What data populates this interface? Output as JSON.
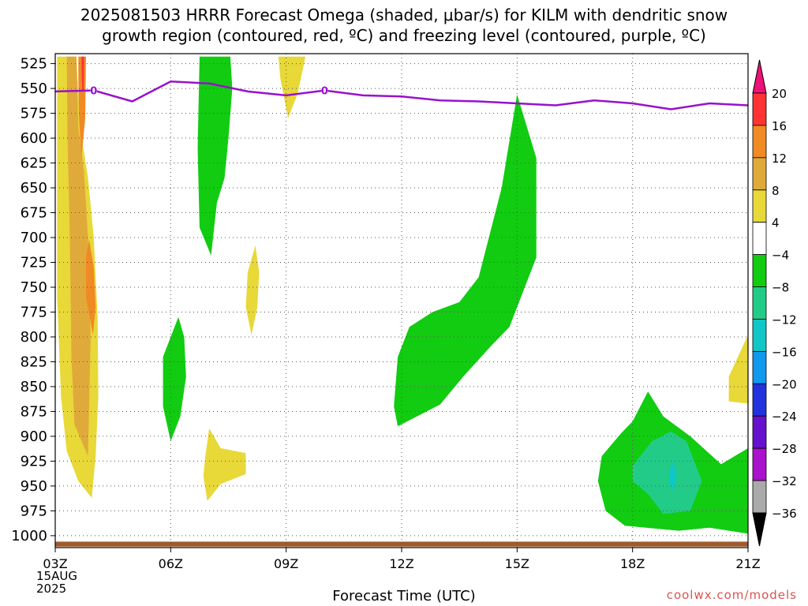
{
  "title": {
    "line1": "2025081503 HRRR Forecast Omega (shaded, μbar/s) for KILM with dendritic snow",
    "line2": "growth region (contoured, red, ºC) and freezing level (contoured, purple, ºC)"
  },
  "footer": {
    "xlabel": "Forecast Time (UTC)",
    "credit": "coolwx.com/models",
    "date_line1": "15AUG",
    "date_line2": "2025"
  },
  "chart_data": {
    "type": "heatmap",
    "title": "2025081503 HRRR Forecast Omega (shaded, μbar/s) for KILM with dendritic snow growth region (contoured, red, ºC) and freezing level (contoured, purple, ºC)",
    "xlabel": "Forecast Time (UTC)",
    "ylabel": "",
    "x_ticks": [
      {
        "hour": 0,
        "label": "03Z"
      },
      {
        "hour": 3,
        "label": "06Z"
      },
      {
        "hour": 6,
        "label": "09Z"
      },
      {
        "hour": 9,
        "label": "12Z"
      },
      {
        "hour": 12,
        "label": "15Z"
      },
      {
        "hour": 15,
        "label": "18Z"
      },
      {
        "hour": 18,
        "label": "21Z"
      }
    ],
    "x_range_hours": [
      0,
      18
    ],
    "y_ticks": [
      525,
      550,
      575,
      600,
      625,
      650,
      675,
      700,
      725,
      750,
      775,
      800,
      825,
      850,
      875,
      900,
      925,
      950,
      975,
      1000
    ],
    "y_range_mb": [
      515,
      1012
    ],
    "grid": true,
    "colorbar": {
      "labels": [
        "20",
        "16",
        "12",
        "8",
        "4",
        "−4",
        "−8",
        "−12",
        "−16",
        "−20",
        "−24",
        "−28",
        "−32",
        "−36"
      ],
      "bins": [
        {
          "range": [
            16,
            20
          ],
          "color": "#ff3333"
        },
        {
          "range": [
            12,
            16
          ],
          "color": "#f08a24"
        },
        {
          "range": [
            8,
            12
          ],
          "color": "#e0aa3a"
        },
        {
          "range": [
            4,
            8
          ],
          "color": "#e8d838"
        },
        {
          "range": [
            -4,
            4
          ],
          "color": "#ffffff"
        },
        {
          "range": [
            -8,
            -4
          ],
          "color": "#11cc11"
        },
        {
          "range": [
            -12,
            -8
          ],
          "color": "#22cc88"
        },
        {
          "range": [
            -16,
            -12
          ],
          "color": "#11c6c6"
        },
        {
          "range": [
            -20,
            -16
          ],
          "color": "#1199ee"
        },
        {
          "range": [
            -24,
            -20
          ],
          "color": "#2233dd"
        },
        {
          "range": [
            -28,
            -24
          ],
          "color": "#6611cc"
        },
        {
          "range": [
            -32,
            -28
          ],
          "color": "#aa11cc"
        },
        {
          "range": [
            -36,
            -32
          ],
          "color": "#aaaaaa"
        }
      ],
      "over_color": "#ee1177",
      "under_color": "#000000"
    },
    "shaded_regions": [
      {
        "value_bin": "4 to 8",
        "color": "#e8d838",
        "points": [
          [
            0.05,
            518
          ],
          [
            0.55,
            518
          ],
          [
            0.65,
            590
          ],
          [
            0.85,
            640
          ],
          [
            1.0,
            700
          ],
          [
            1.1,
            780
          ],
          [
            1.12,
            860
          ],
          [
            1.05,
            920
          ],
          [
            0.95,
            962
          ],
          [
            0.6,
            945
          ],
          [
            0.3,
            915
          ],
          [
            0.15,
            860
          ],
          [
            0.05,
            760
          ]
        ]
      },
      {
        "value_bin": "8 to 12",
        "color": "#e0aa3a",
        "points": [
          [
            0.3,
            518
          ],
          [
            0.55,
            518
          ],
          [
            0.6,
            590
          ],
          [
            0.75,
            635
          ],
          [
            0.85,
            700
          ],
          [
            0.92,
            800
          ],
          [
            0.85,
            920
          ],
          [
            0.5,
            888
          ],
          [
            0.42,
            820
          ],
          [
            0.38,
            700
          ],
          [
            0.32,
            600
          ]
        ]
      },
      {
        "value_bin": "12 to 16",
        "color": "#f08a24",
        "points": [
          [
            0.6,
            518
          ],
          [
            0.8,
            518
          ],
          [
            0.78,
            580
          ],
          [
            0.68,
            620
          ],
          [
            0.62,
            580
          ],
          [
            0.6,
            540
          ]
        ]
      },
      {
        "value_bin": "12 to 16",
        "color": "#f08a24",
        "points": [
          [
            0.8,
            720
          ],
          [
            0.88,
            702
          ],
          [
            1.0,
            730
          ],
          [
            1.05,
            770
          ],
          [
            0.98,
            798
          ],
          [
            0.8,
            760
          ]
        ]
      },
      {
        "value_bin": "16 to 20",
        "color": "#ff3333",
        "points": [
          [
            0.68,
            518
          ],
          [
            0.75,
            518
          ],
          [
            0.74,
            552
          ],
          [
            0.7,
            552
          ]
        ]
      },
      {
        "value_bin": "4 to 8",
        "color": "#e8d838",
        "points": [
          [
            5.8,
            518
          ],
          [
            6.5,
            518
          ],
          [
            6.3,
            555
          ],
          [
            6.05,
            580
          ],
          [
            5.85,
            540
          ]
        ]
      },
      {
        "value_bin": "4 to 8",
        "color": "#e8d838",
        "points": [
          [
            5.0,
            735
          ],
          [
            5.2,
            708
          ],
          [
            5.3,
            735
          ],
          [
            5.25,
            770
          ],
          [
            5.1,
            798
          ],
          [
            4.95,
            770
          ]
        ]
      },
      {
        "value_bin": "4 to 8",
        "color": "#e8d838",
        "points": [
          [
            3.9,
            920
          ],
          [
            4.0,
            892
          ],
          [
            4.3,
            912
          ],
          [
            4.95,
            917
          ],
          [
            4.95,
            938
          ],
          [
            4.3,
            948
          ],
          [
            3.95,
            965
          ],
          [
            3.85,
            940
          ]
        ]
      },
      {
        "value_bin": "4 to 8",
        "color": "#e8d838",
        "points": [
          [
            17.5,
            840
          ],
          [
            18.0,
            798
          ],
          [
            18.0,
            867
          ],
          [
            17.5,
            865
          ]
        ]
      },
      {
        "value_bin": "-4 to -8",
        "color": "#11cc11",
        "points": [
          [
            3.75,
            518
          ],
          [
            4.55,
            518
          ],
          [
            4.6,
            550
          ],
          [
            4.5,
            600
          ],
          [
            4.4,
            640
          ],
          [
            4.2,
            665
          ],
          [
            4.05,
            718
          ],
          [
            3.75,
            690
          ],
          [
            3.7,
            610
          ]
        ]
      },
      {
        "value_bin": "-4 to -8",
        "color": "#11cc11",
        "points": [
          [
            3.2,
            780
          ],
          [
            3.35,
            800
          ],
          [
            3.4,
            840
          ],
          [
            3.25,
            880
          ],
          [
            3.0,
            905
          ],
          [
            2.8,
            870
          ],
          [
            2.8,
            820
          ]
        ]
      },
      {
        "value_bin": "-4 to -8",
        "color": "#11cc11",
        "points": [
          [
            9.8,
            775
          ],
          [
            10.5,
            765
          ],
          [
            11.0,
            740
          ],
          [
            11.6,
            650
          ],
          [
            12.0,
            556
          ],
          [
            12.5,
            620
          ],
          [
            12.5,
            720
          ],
          [
            11.8,
            790
          ],
          [
            11.3,
            810
          ],
          [
            10.6,
            840
          ],
          [
            10.0,
            868
          ],
          [
            8.9,
            890
          ],
          [
            8.8,
            870
          ],
          [
            8.9,
            820
          ],
          [
            9.2,
            790
          ]
        ]
      },
      {
        "value_bin": "-4 to -8",
        "color": "#11cc11",
        "points": [
          [
            14.2,
            920
          ],
          [
            14.7,
            897
          ],
          [
            15.0,
            885
          ],
          [
            15.4,
            855
          ],
          [
            15.8,
            880
          ],
          [
            16.5,
            900
          ],
          [
            17.3,
            928
          ],
          [
            18.0,
            912
          ],
          [
            18.0,
            998
          ],
          [
            17.0,
            992
          ],
          [
            16.2,
            995
          ],
          [
            14.8,
            990
          ],
          [
            14.3,
            975
          ],
          [
            14.1,
            945
          ]
        ]
      },
      {
        "value_bin": "-8 to -12",
        "color": "#22cc88",
        "points": [
          [
            15.0,
            930
          ],
          [
            15.5,
            905
          ],
          [
            16.0,
            895
          ],
          [
            16.4,
            905
          ],
          [
            16.8,
            945
          ],
          [
            16.5,
            975
          ],
          [
            15.8,
            978
          ],
          [
            15.4,
            958
          ],
          [
            15.0,
            945
          ]
        ]
      },
      {
        "value_bin": "-12 to -16",
        "color": "#11c6c6",
        "points": [
          [
            15.95,
            935
          ],
          [
            16.05,
            925
          ],
          [
            16.15,
            940
          ],
          [
            16.05,
            955
          ],
          [
            15.95,
            948
          ]
        ]
      }
    ],
    "freezing_level": {
      "label": "0",
      "color": "#9911cc",
      "x_hours": [
        0,
        1,
        2,
        3,
        4,
        5,
        6,
        7,
        8,
        9,
        10,
        11,
        12,
        13,
        14,
        15,
        16,
        17,
        18
      ],
      "pressure_mb": [
        553,
        552,
        563,
        543,
        545,
        553,
        557,
        552,
        557,
        558,
        562,
        563,
        565,
        567,
        562,
        565,
        571,
        565,
        567
      ]
    },
    "ground_band": {
      "color": "#a05a2c",
      "pressure_range_mb": [
        1006,
        1011
      ]
    }
  }
}
